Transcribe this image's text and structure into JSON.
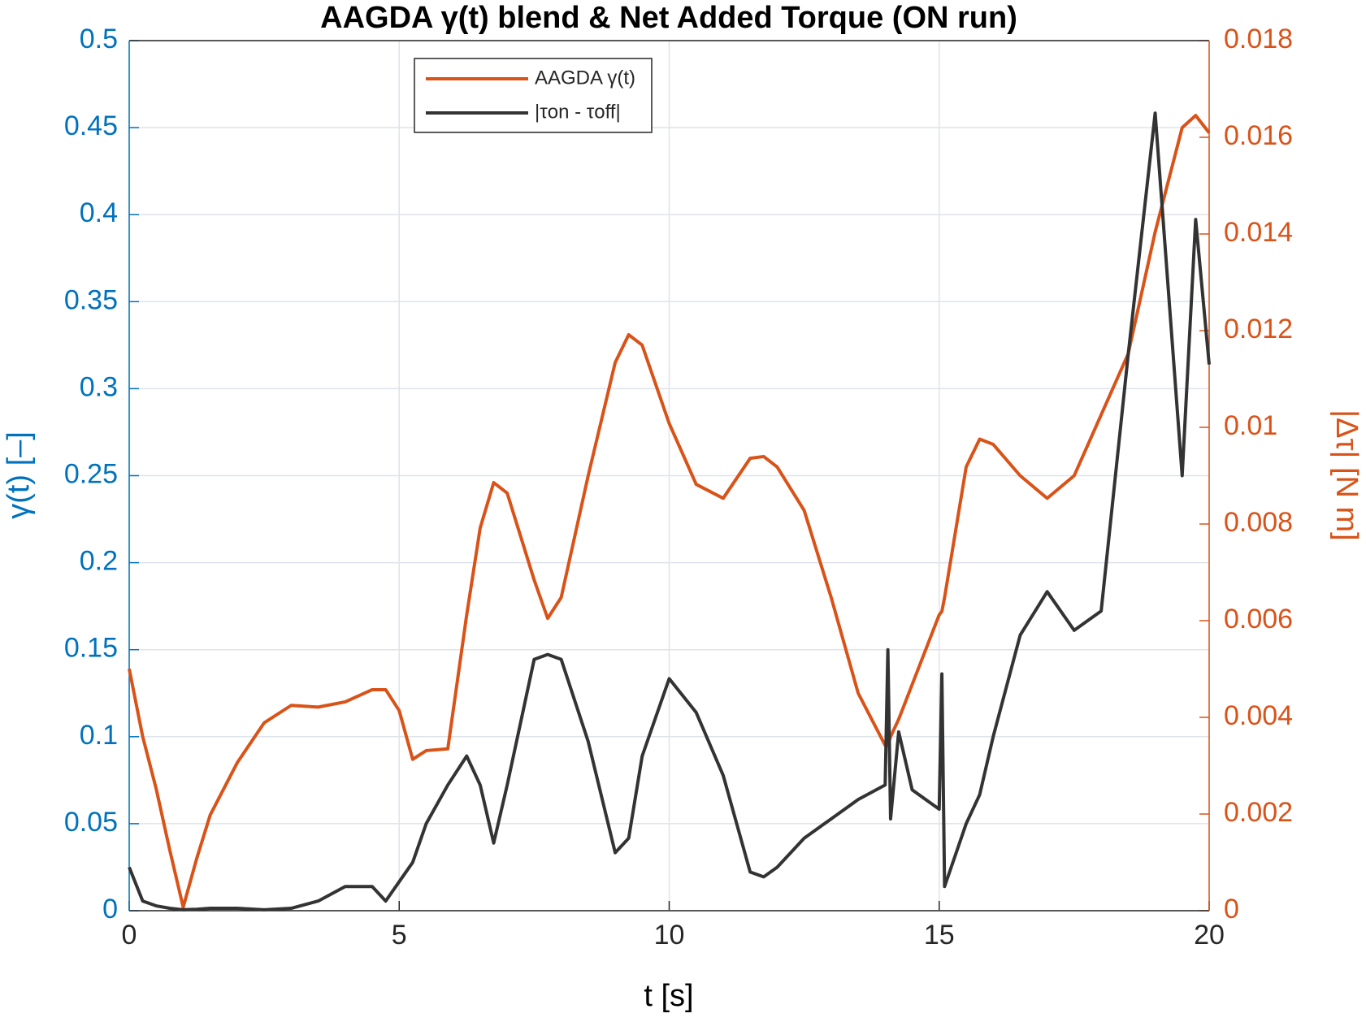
{
  "chart_data": {
    "type": "line",
    "title": "AAGDA γ(t) blend & Net Added Torque (ON run)",
    "xlabel": "t [s]",
    "ylabel": "γ(t) [–]",
    "y2label": "|Δτ| [N m]",
    "x": [
      0,
      0.25,
      0.5,
      0.75,
      1,
      1.25,
      1.5,
      2,
      2.5,
      3,
      3.5,
      4,
      4.5,
      4.75,
      5,
      5.25,
      5.5,
      5.9,
      6.25,
      6.5,
      6.75,
      7,
      7.5,
      7.75,
      8,
      8.5,
      9,
      9.25,
      9.5,
      10,
      10.5,
      11,
      11.5,
      11.75,
      12,
      12.5,
      13,
      13.5,
      14,
      14.05,
      14.1,
      14.25,
      14.5,
      15,
      15.05,
      15.1,
      15.5,
      15.75,
      16,
      16.5,
      17,
      17.5,
      18,
      18.5,
      19,
      19.5,
      19.75,
      20
    ],
    "series": [
      {
        "name": "AAGDA γ(t)",
        "color": "#D95319",
        "axis": "y",
        "values": [
          0.139,
          0.1,
          0.07,
          0.035,
          0.002,
          0.03,
          0.055,
          0.085,
          0.108,
          0.118,
          0.117,
          0.12,
          0.127,
          0.127,
          0.115,
          0.087,
          0.092,
          0.093,
          0.17,
          0.22,
          0.246,
          0.24,
          0.19,
          0.168,
          0.18,
          0.25,
          0.315,
          0.331,
          0.325,
          0.28,
          0.245,
          0.237,
          0.26,
          0.261,
          0.255,
          0.23,
          0.18,
          0.125,
          0.095,
          0.095,
          0.1,
          0.11,
          0.13,
          0.17,
          0.172,
          0.18,
          0.255,
          0.271,
          0.268,
          0.25,
          0.237,
          0.25,
          0.285,
          0.32,
          0.39,
          0.45,
          0.457,
          0.447
        ]
      },
      {
        "name": "|τon - τoff|",
        "color": "#333333",
        "axis": "y2",
        "values": [
          0.0009,
          0.0002,
          0.0001,
          5e-05,
          2e-05,
          3e-05,
          5e-05,
          5e-05,
          2e-05,
          5e-05,
          0.0002,
          0.0005,
          0.0005,
          0.0002,
          0.0006,
          0.001,
          0.0018,
          0.0026,
          0.0032,
          0.0026,
          0.0014,
          0.0026,
          0.0052,
          0.0053,
          0.0052,
          0.0035,
          0.0012,
          0.0015,
          0.0032,
          0.0048,
          0.0041,
          0.0028,
          0.0008,
          0.0007,
          0.0009,
          0.0015,
          0.0019,
          0.0023,
          0.0026,
          0.0054,
          0.0019,
          0.0037,
          0.0025,
          0.0021,
          0.0049,
          0.0005,
          0.0018,
          0.0024,
          0.0036,
          0.0057,
          0.0066,
          0.0058,
          0.0062,
          0.0115,
          0.0165,
          0.009,
          0.0143,
          0.0113
        ]
      }
    ],
    "xlim": [
      0,
      20
    ],
    "xticks": [
      0,
      5,
      10,
      15,
      20
    ],
    "ylim": [
      0,
      0.5
    ],
    "yticks": [
      0,
      0.05,
      0.1,
      0.15,
      0.2,
      0.25,
      0.3,
      0.35,
      0.4,
      0.45,
      0.5
    ],
    "y2lim": [
      0,
      0.018
    ],
    "y2ticks": [
      0,
      0.002,
      0.004,
      0.006,
      0.008,
      0.01,
      0.012,
      0.014,
      0.016,
      0.018
    ],
    "ycolor": "#0072BD",
    "y2color": "#D95319",
    "grid": true,
    "legend": "top"
  }
}
